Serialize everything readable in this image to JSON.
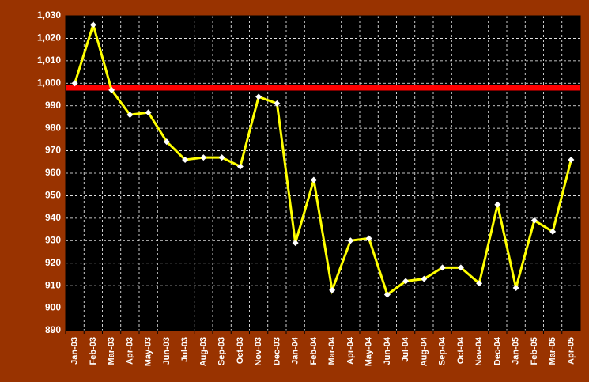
{
  "chart_data": {
    "type": "line",
    "categories": [
      "Jan-03",
      "Feb-03",
      "Mar-03",
      "Apr-03",
      "May-03",
      "Jun-03",
      "Jul-03",
      "Aug-03",
      "Sep-03",
      "Oct-03",
      "Nov-03",
      "Dec-03",
      "Jan-04",
      "Feb-04",
      "Mar-04",
      "Apr-04",
      "May-04",
      "Jun-04",
      "Jul-04",
      "Aug-04",
      "Sep-04",
      "Oct-04",
      "Nov-04",
      "Dec-04",
      "Jan-05",
      "Feb-05",
      "Mar-05",
      "Apr-05"
    ],
    "values": [
      1000,
      1026,
      997,
      986,
      987,
      974,
      966,
      967,
      967,
      963,
      994,
      991,
      929,
      957,
      908,
      930,
      931,
      906,
      912,
      913,
      918,
      918,
      911,
      946,
      909,
      939,
      934,
      966
    ],
    "color": "#ffff00",
    "marker_color": "#ffffff",
    "reference_line": {
      "value": 998,
      "color": "#ff0000"
    },
    "ylim": [
      890,
      1030
    ],
    "yticks": [
      890,
      900,
      910,
      920,
      930,
      940,
      950,
      960,
      970,
      980,
      990,
      {
        "value": 1000,
        "label": "1,000"
      },
      {
        "value": 1010,
        "label": "1,010"
      },
      {
        "value": 1020,
        "label": "1,020"
      },
      {
        "value": 1030,
        "label": "1,030"
      }
    ],
    "grid": true
  }
}
